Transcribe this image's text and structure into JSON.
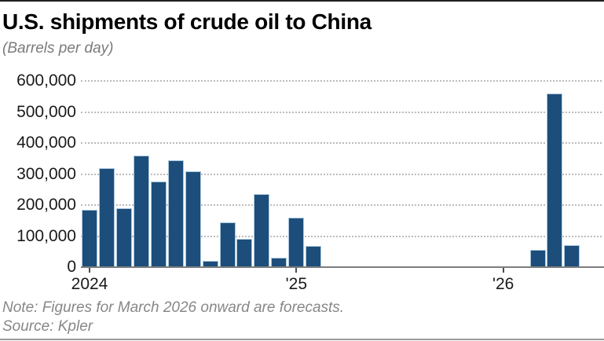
{
  "header": {
    "title": "U.S. shipments of crude oil to China",
    "subtitle": "(Barrels per day)"
  },
  "footer": {
    "note": "Note: Figures for March 2026 onward are forecasts.",
    "source": "Source: Kpler"
  },
  "colors": {
    "bar": "#1d4e7b",
    "bar_edge": "#adc8de",
    "gridline": "#bcbcbc",
    "axis_line": "#7d7d7d",
    "text": "#1a1a1a",
    "muted_text": "#878787",
    "top_rule": "#1f1f1f",
    "bottom_rule": "#9a9a9a"
  },
  "chart_data": {
    "type": "bar",
    "title": "U.S. shipments of crude oil to China",
    "subtitle": "(Barrels per day)",
    "unit": "barrels per day",
    "categories": [
      "Jan 2024",
      "Feb 2024",
      "Mar 2024",
      "Apr 2024",
      "May 2024",
      "Jun 2024",
      "Jul 2024",
      "Aug 2024",
      "Sep 2024",
      "Oct 2024",
      "Nov 2024",
      "Dec 2024",
      "Jan 2025",
      "Feb 2025",
      "Mar 2025",
      "Apr 2025",
      "May 2025",
      "Jun 2025",
      "Jul 2025",
      "Aug 2025",
      "Sep 2025",
      "Oct 2025",
      "Nov 2025",
      "Dec 2025",
      "Jan 2026",
      "Feb 2026",
      "Mar 2026",
      "Apr 2026",
      "May 2026"
    ],
    "values": [
      185000,
      320000,
      190000,
      360000,
      275000,
      345000,
      310000,
      20000,
      145000,
      90000,
      235000,
      30000,
      160000,
      68000,
      0,
      0,
      0,
      0,
      0,
      0,
      0,
      0,
      0,
      0,
      0,
      0,
      55000,
      560000,
      70000
    ],
    "ylim": [
      0,
      600000
    ],
    "y_ticks": [
      {
        "value": 600000,
        "label": "600,000"
      },
      {
        "value": 500000,
        "label": "500,000"
      },
      {
        "value": 400000,
        "label": "400,000"
      },
      {
        "value": 300000,
        "label": "300,000"
      },
      {
        "value": 200000,
        "label": "200,000"
      },
      {
        "value": 100000,
        "label": "100,000"
      },
      {
        "value": 0,
        "label": "0"
      }
    ],
    "x_ticks": [
      {
        "index": 0,
        "label": "2024"
      },
      {
        "index": 12,
        "label": "'25"
      },
      {
        "index": 24,
        "label": "'26"
      }
    ],
    "grid": "horizontal-dotted",
    "legend": "none",
    "bar_color": "#1d4e7b",
    "forecast_from": "Mar 2026"
  }
}
